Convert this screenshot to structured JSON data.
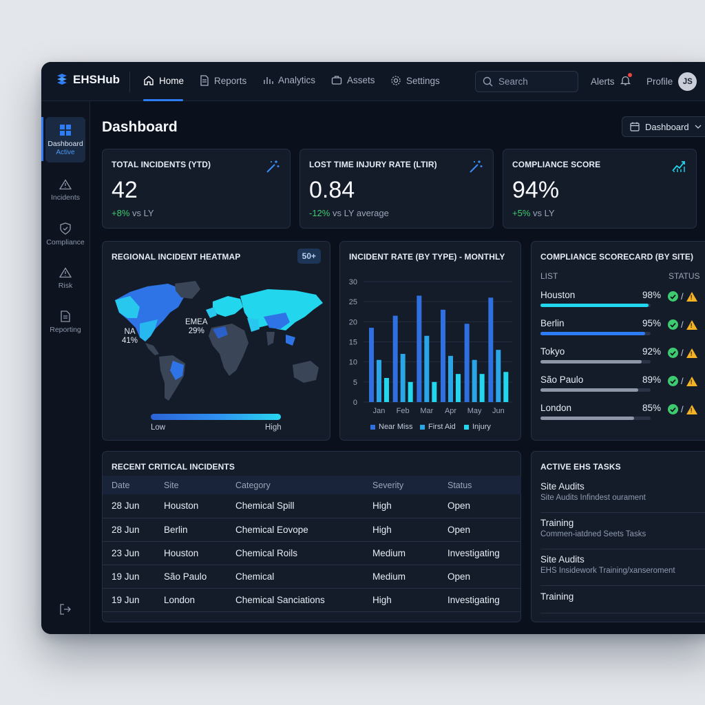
{
  "app": {
    "name": "EHSHub"
  },
  "nav": {
    "items": [
      {
        "label": "Home",
        "icon": "home-icon",
        "active": true
      },
      {
        "label": "Reports",
        "icon": "document-icon"
      },
      {
        "label": "Analytics",
        "icon": "bar-chart-icon"
      },
      {
        "label": "Assets",
        "icon": "briefcase-icon"
      },
      {
        "label": "Settings",
        "icon": "gear-icon"
      }
    ],
    "search_placeholder": "Search",
    "alerts_label": "Alerts",
    "profile_label": "Profile",
    "avatar_initials": "JS"
  },
  "sidebar": {
    "items": [
      {
        "label": "Dashboard",
        "sub": "Active",
        "icon": "grid-icon"
      },
      {
        "label": "Incidents",
        "icon": "warning-icon"
      },
      {
        "label": "Compliance",
        "icon": "shield-check-icon"
      },
      {
        "label": "Risk",
        "icon": "alert-triangle-icon"
      },
      {
        "label": "Reporting",
        "icon": "file-icon"
      }
    ]
  },
  "page": {
    "title": "Dashboard",
    "view_select": "Dashboard"
  },
  "kpis": [
    {
      "title": "TOTAL INCIDENTS (YTD)",
      "value": "42",
      "delta": "+8%",
      "delta_suffix": " vs LY"
    },
    {
      "title": "LOST TIME INJURY RATE (LTIR)",
      "value": "0.84",
      "delta": "-12%",
      "delta_suffix": " vs LY average"
    },
    {
      "title": "COMPLIANCE SCORE",
      "value": "94%",
      "delta": "+5%",
      "delta_suffix": " vs LY"
    }
  ],
  "heatmap": {
    "title": "REGIONAL INCIDENT HEATMAP",
    "badge": "50+",
    "regions": [
      {
        "name": "NA",
        "value": "41%"
      },
      {
        "name": "EMEA",
        "value": "29%"
      }
    ],
    "legend_low": "Low",
    "legend_high": "High"
  },
  "chart_data": {
    "type": "bar",
    "title": "INCIDENT RATE (BY TYPE) - MONTHLY",
    "categories": [
      "Jan",
      "Feb",
      "Mar",
      "Apr",
      "May",
      "Jun"
    ],
    "y_ticks": [
      "30",
      "25",
      "20",
      "15",
      "10",
      "5",
      "0"
    ],
    "ylim": [
      0,
      30
    ],
    "grid": true,
    "legend_position": "bottom",
    "series": [
      {
        "name": "Near Miss",
        "color": "#2f6fe0",
        "values": [
          18.5,
          21.5,
          26.5,
          23,
          19.5,
          26
        ]
      },
      {
        "name": "First Aid",
        "color": "#2aa6e6",
        "values": [
          10.5,
          12,
          16.5,
          11.5,
          10.5,
          13
        ]
      },
      {
        "name": "Injury",
        "color": "#22d6ee",
        "values": [
          6,
          5,
          5,
          7,
          7,
          7.5
        ]
      }
    ]
  },
  "scorecard": {
    "title": "COMPLIANCE SCORECARD (BY SITE)",
    "col_list": "LIST",
    "col_status": "STATUS",
    "sep": "/",
    "sites": [
      {
        "name": "Houston",
        "pct": "98%",
        "score": 0.98,
        "color": "#22d6ee"
      },
      {
        "name": "Berlin",
        "pct": "95%",
        "score": 0.95,
        "color": "#2f7df6"
      },
      {
        "name": "Tokyo",
        "pct": "92%",
        "score": 0.92,
        "color": "#8d97a8"
      },
      {
        "name": "São Paulo",
        "pct": "89%",
        "score": 0.89,
        "color": "#8d97a8"
      },
      {
        "name": "London",
        "pct": "85%",
        "score": 0.85,
        "color": "#8d97a8"
      }
    ]
  },
  "incidents": {
    "title": "RECENT CRITICAL INCIDENTS",
    "columns": [
      "Date",
      "Site",
      "Category",
      "Severity",
      "Status"
    ],
    "rows": [
      [
        "28 Jun",
        "Houston",
        "Chemical Spill",
        "High",
        "Open"
      ],
      [
        "28 Jun",
        "Berlin",
        "Chemical Eovope",
        "High",
        "Open"
      ],
      [
        "23 Jun",
        "Houston",
        "Chemical Roils",
        "Medium",
        "Investigating"
      ],
      [
        "19 Jun",
        "São Paulo",
        "Chemical",
        "Medium",
        "Open"
      ],
      [
        "19 Jun",
        "London",
        "Chemical Sanciations",
        "High",
        "Investigating"
      ]
    ]
  },
  "tasks": {
    "title": "ACTIVE EHS TASKS",
    "items": [
      {
        "title": "Site Audits",
        "sub": "Site Audits Infindest ourament",
        "status_color": "#3ecb70"
      },
      {
        "title": "Training",
        "sub": "Commen-iatdned Seets Tasks",
        "status_color": "#ef4444"
      },
      {
        "title": "Site Audits",
        "sub": "EHS Insidework Training/xanseroment",
        "status_color": "#3ecb70"
      },
      {
        "title": "Training",
        "sub": "",
        "status_color": "#3ecb70"
      }
    ]
  }
}
